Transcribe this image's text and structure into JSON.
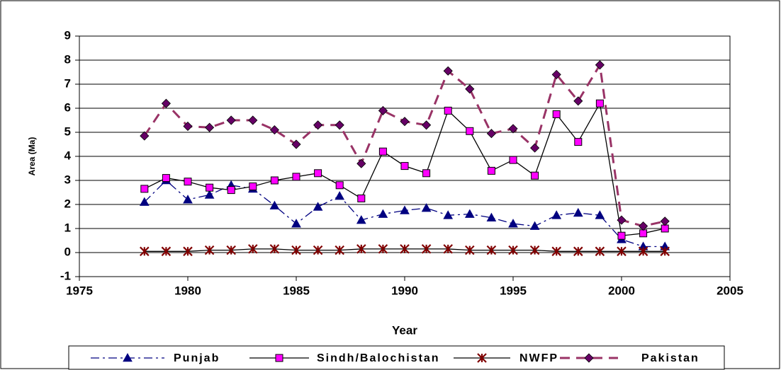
{
  "chart_data": {
    "type": "line",
    "xlabel": "Year",
    "ylabel": "Area (Ma)",
    "x": [
      1978,
      1979,
      1980,
      1981,
      1982,
      1983,
      1984,
      1985,
      1986,
      1987,
      1988,
      1989,
      1990,
      1991,
      1992,
      1993,
      1994,
      1995,
      1996,
      1997,
      1998,
      1999,
      2000,
      2001,
      2002
    ],
    "xlim": [
      1975,
      2005
    ],
    "xticks": [
      1975,
      1980,
      1985,
      1990,
      1995,
      2000,
      2005
    ],
    "ylim": [
      -1,
      9
    ],
    "yticks": [
      -1,
      0,
      1,
      2,
      3,
      4,
      5,
      6,
      7,
      8,
      9
    ],
    "grid": true,
    "legend": "bottom",
    "series": [
      {
        "name": "Punjab",
        "color": "#000080",
        "marker": "triangle",
        "marker_color": "#000080",
        "line_style": "dash-dot",
        "values": [
          2.1,
          3.0,
          2.2,
          2.4,
          2.8,
          2.65,
          1.95,
          1.2,
          1.9,
          2.35,
          1.35,
          1.6,
          1.75,
          1.85,
          1.55,
          1.6,
          1.45,
          1.2,
          1.1,
          1.55,
          1.65,
          1.55,
          0.55,
          0.25,
          0.25
        ]
      },
      {
        "name": "Sindh/Balochistan",
        "color": "#000000",
        "marker": "square",
        "marker_color": "#ff00ff",
        "line_style": "solid",
        "values": [
          2.65,
          3.1,
          2.95,
          2.7,
          2.6,
          2.75,
          3.0,
          3.15,
          3.3,
          2.8,
          2.25,
          4.2,
          3.6,
          3.3,
          5.9,
          5.05,
          3.4,
          3.85,
          3.2,
          5.75,
          4.6,
          6.2,
          0.7,
          0.8,
          1.0
        ]
      },
      {
        "name": "NWFP",
        "color": "#000000",
        "marker": "star",
        "marker_color": "#800000",
        "line_style": "solid",
        "values": [
          0.05,
          0.05,
          0.05,
          0.1,
          0.1,
          0.15,
          0.15,
          0.1,
          0.1,
          0.1,
          0.15,
          0.15,
          0.15,
          0.15,
          0.15,
          0.1,
          0.1,
          0.1,
          0.1,
          0.05,
          0.05,
          0.05,
          0.05,
          0.05,
          0.05
        ]
      },
      {
        "name": "Pakistan",
        "color": "#993366",
        "marker": "diamond",
        "marker_color": "#660066",
        "line_style": "dashed",
        "values": [
          4.85,
          6.2,
          5.25,
          5.2,
          5.5,
          5.5,
          5.1,
          4.5,
          5.3,
          5.3,
          3.7,
          5.9,
          5.45,
          5.3,
          7.55,
          6.8,
          4.95,
          5.15,
          4.35,
          7.4,
          6.3,
          7.8,
          1.35,
          1.1,
          1.3
        ]
      }
    ]
  }
}
